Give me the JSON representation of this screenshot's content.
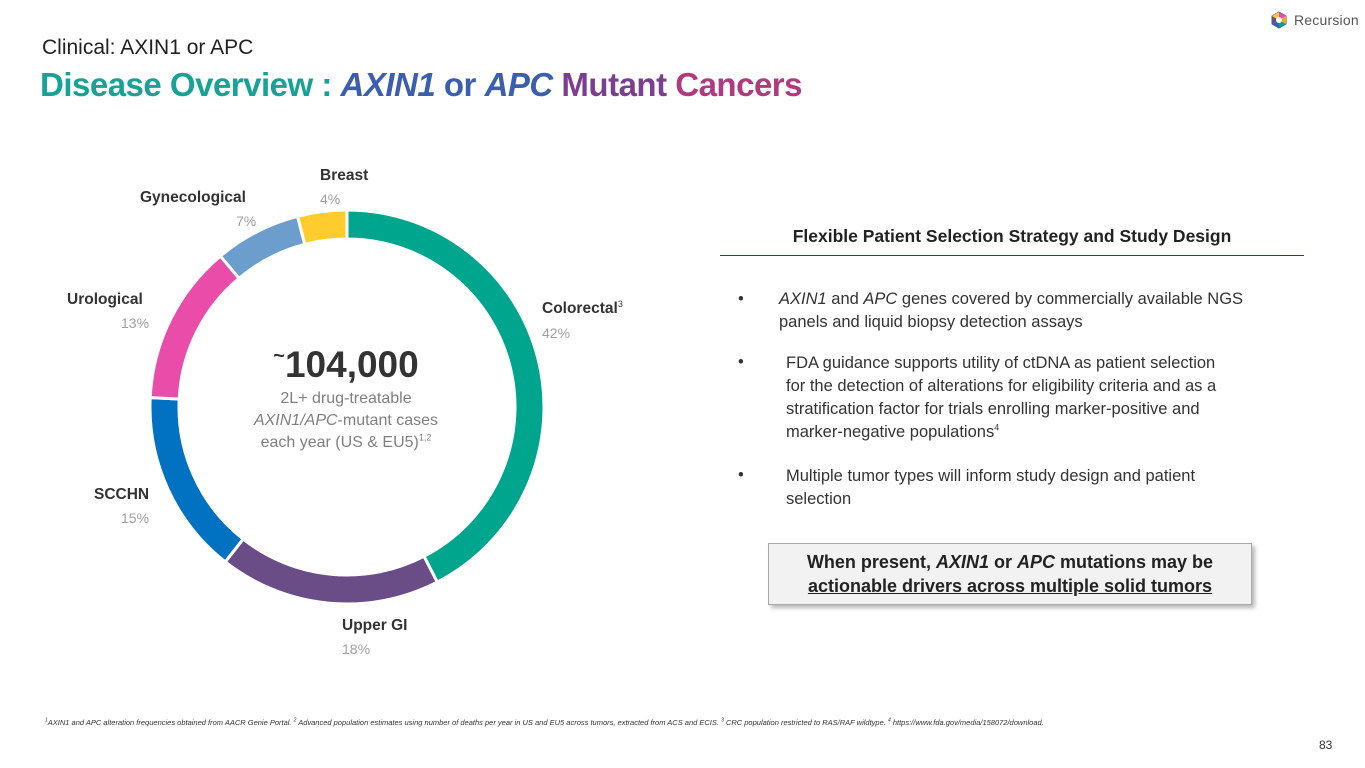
{
  "brand": {
    "name": "Recursion"
  },
  "header": {
    "subtitle": "Clinical: AXIN1 or APC",
    "title_part1": "Disease Overview : ",
    "title_part2": "AXIN1",
    "title_part3": " or ",
    "title_part4": "APC",
    "title_part5": " Mutant ",
    "title_part6": "Cancers"
  },
  "chart_data": {
    "type": "pie",
    "title": "",
    "categories": [
      "Colorectal",
      "Upper GI",
      "SCCHN",
      "Urological",
      "Gynecological",
      "Breast"
    ],
    "values": [
      42,
      18,
      15,
      13,
      7,
      4
    ],
    "value_labels": [
      "42%",
      "18%",
      "15%",
      "13%",
      "7%",
      "4%"
    ],
    "category_superscripts": [
      "3",
      "",
      "",
      "",
      "",
      ""
    ],
    "colors": [
      "#00a58e",
      "#6a4c87",
      "#0171c2",
      "#e94ca9",
      "#6b9ecd",
      "#fecc2f"
    ],
    "center_value": "104,000",
    "center_prefix": "~",
    "center_line1": "2L+ drug-treatable",
    "center_line2_italic": "AXIN1/APC",
    "center_line2_rest": "-mutant cases",
    "center_line3": "each year (US & EU5)",
    "center_line3_sup": "1,2"
  },
  "selection": {
    "heading": "Flexible Patient Selection Strategy and Study Design",
    "bullet_char": "•",
    "bullet1_i1": "AXIN1",
    "bullet1_t1": " and ",
    "bullet1_i2": "APC",
    "bullet1_line1_rest": " genes covered by commercially available NGS",
    "bullet1_line2": "panels and liquid biopsy detection assays",
    "bullet2_lines": [
      "FDA guidance supports utility of ctDNA as patient selection",
      "for the detection of alterations for eligibility criteria and as a",
      "stratification factor for trials enrolling marker-positive and"
    ],
    "bullet2_last": "marker-negative populations",
    "bullet2_sup": "4",
    "bullet3_lines": [
      "Multiple tumor types will inform study design and patient",
      "selection"
    ]
  },
  "callout": {
    "line1_a": "When present, ",
    "line1_i1": "AXIN1",
    "line1_b": " or ",
    "line1_i2": "APC",
    "line1_c": " mutations may be",
    "line2": "actionable drivers across multiple solid tumors"
  },
  "footnote": {
    "s1": "1",
    "t1": "AXIN1 and APC alteration frequencies obtained from AACR Genie Portal. ",
    "s2": "2",
    "t2": " Advanced population estimates using number of deaths per year in US and EU5 across tumors, extracted from ACS and ECIS. ",
    "s3": "3",
    "t3": " CRC population restricted to RAS/RAF wildtype. ",
    "s4": "4",
    "t4": " https://www.fda.gov/media/158072/download."
  },
  "page_number": "83"
}
